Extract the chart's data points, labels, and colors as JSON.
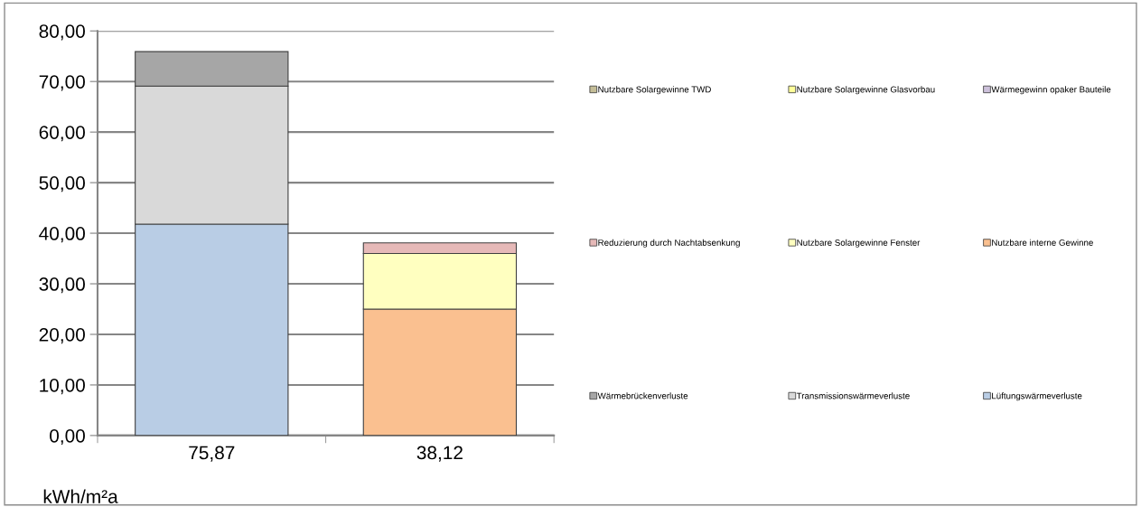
{
  "chart_data": {
    "type": "bar",
    "stacked": true,
    "ylabel": "kWh/m²a",
    "categories": [
      "75,87",
      "38,12"
    ],
    "series": [
      {
        "name": "Lüftungswärmeverluste",
        "color": "#b9cde5",
        "values": [
          41.8,
          null
        ]
      },
      {
        "name": "Transmissionswärmeverluste",
        "color": "#d9d9d9",
        "values": [
          27.3,
          null
        ]
      },
      {
        "name": "Wärmebrückenverluste",
        "color": "#a6a6a6",
        "values": [
          6.8,
          null
        ]
      },
      {
        "name": "Nutzbare interne Gewinne",
        "color": "#fac090",
        "values": [
          null,
          25.0
        ]
      },
      {
        "name": "Nutzbare Solargewinne Fenster",
        "color": "#ffffc0",
        "values": [
          null,
          11.0
        ]
      },
      {
        "name": "Reduzierung durch Nachtabsenkung",
        "color": "#e6b9b8",
        "values": [
          null,
          2.1
        ]
      },
      {
        "name": "Wärmegewinn opaker Bauteile",
        "color": "#ccc0da",
        "values": [
          null,
          null
        ]
      },
      {
        "name": "Nutzbare Solargewinne Glasvorbau",
        "color": "#ffff99",
        "values": [
          null,
          null
        ]
      },
      {
        "name": "Nutzbare Solargewinne TWD",
        "color": "#c4bd97",
        "values": [
          null,
          null
        ]
      }
    ],
    "ylim": [
      0,
      80
    ],
    "yticks": [
      {
        "value": 0,
        "label": "0,00"
      },
      {
        "value": 10,
        "label": "10,00"
      },
      {
        "value": 20,
        "label": "20,00"
      },
      {
        "value": 30,
        "label": "30,00"
      },
      {
        "value": 40,
        "label": "40,00"
      },
      {
        "value": 50,
        "label": "50,00"
      },
      {
        "value": 60,
        "label": "60,00"
      },
      {
        "value": 70,
        "label": "70,00"
      },
      {
        "value": 80,
        "label": "80,00"
      }
    ],
    "grid": "y",
    "legend": "right"
  }
}
